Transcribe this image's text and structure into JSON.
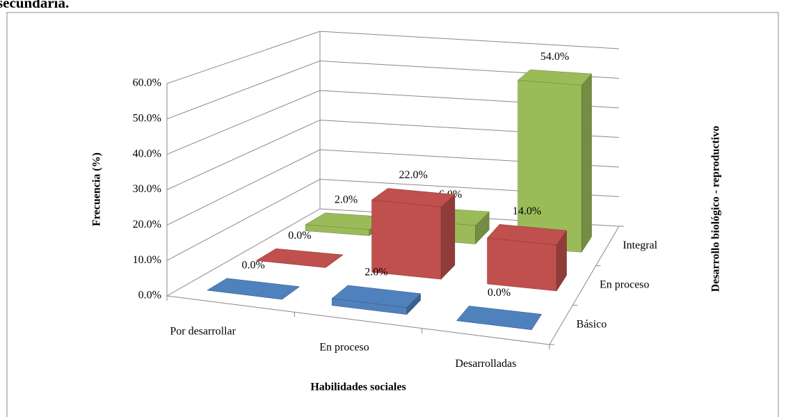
{
  "chart_data": {
    "type": "bar3d",
    "title": "secundaria.",
    "y_label": "Frecuencia (%)",
    "x_label": "Habilidades sociales",
    "z_label": "Desarrollo biológico - reproductivo",
    "categories": [
      "Por desarrollar",
      "En proceso",
      "Desarrolladas"
    ],
    "series": [
      {
        "name": "Básico",
        "color": "#4f81bd",
        "values": [
          0,
          2,
          0
        ],
        "value_labels": [
          "0.0%",
          "2.0%",
          "0.0%"
        ]
      },
      {
        "name": "En proceso",
        "color": "#c0504d",
        "values": [
          0,
          22,
          14
        ],
        "value_labels": [
          "0.0%",
          "22.0%",
          "14.0%"
        ]
      },
      {
        "name": "Integral",
        "color": "#9bbb59",
        "values": [
          2,
          6,
          54
        ],
        "value_labels": [
          "2.0%",
          "6.0%",
          "54.0%"
        ]
      }
    ],
    "ylim": [
      0,
      60
    ],
    "yticks": [
      {
        "value": 0,
        "label": "0.0%"
      },
      {
        "value": 10,
        "label": "10.0%"
      },
      {
        "value": 20,
        "label": "20.0%"
      },
      {
        "value": 30,
        "label": "30.0%"
      },
      {
        "value": 40,
        "label": "40.0%"
      },
      {
        "value": 50,
        "label": "50.0%"
      },
      {
        "value": 60,
        "label": "60.0%"
      }
    ],
    "grid": true
  }
}
